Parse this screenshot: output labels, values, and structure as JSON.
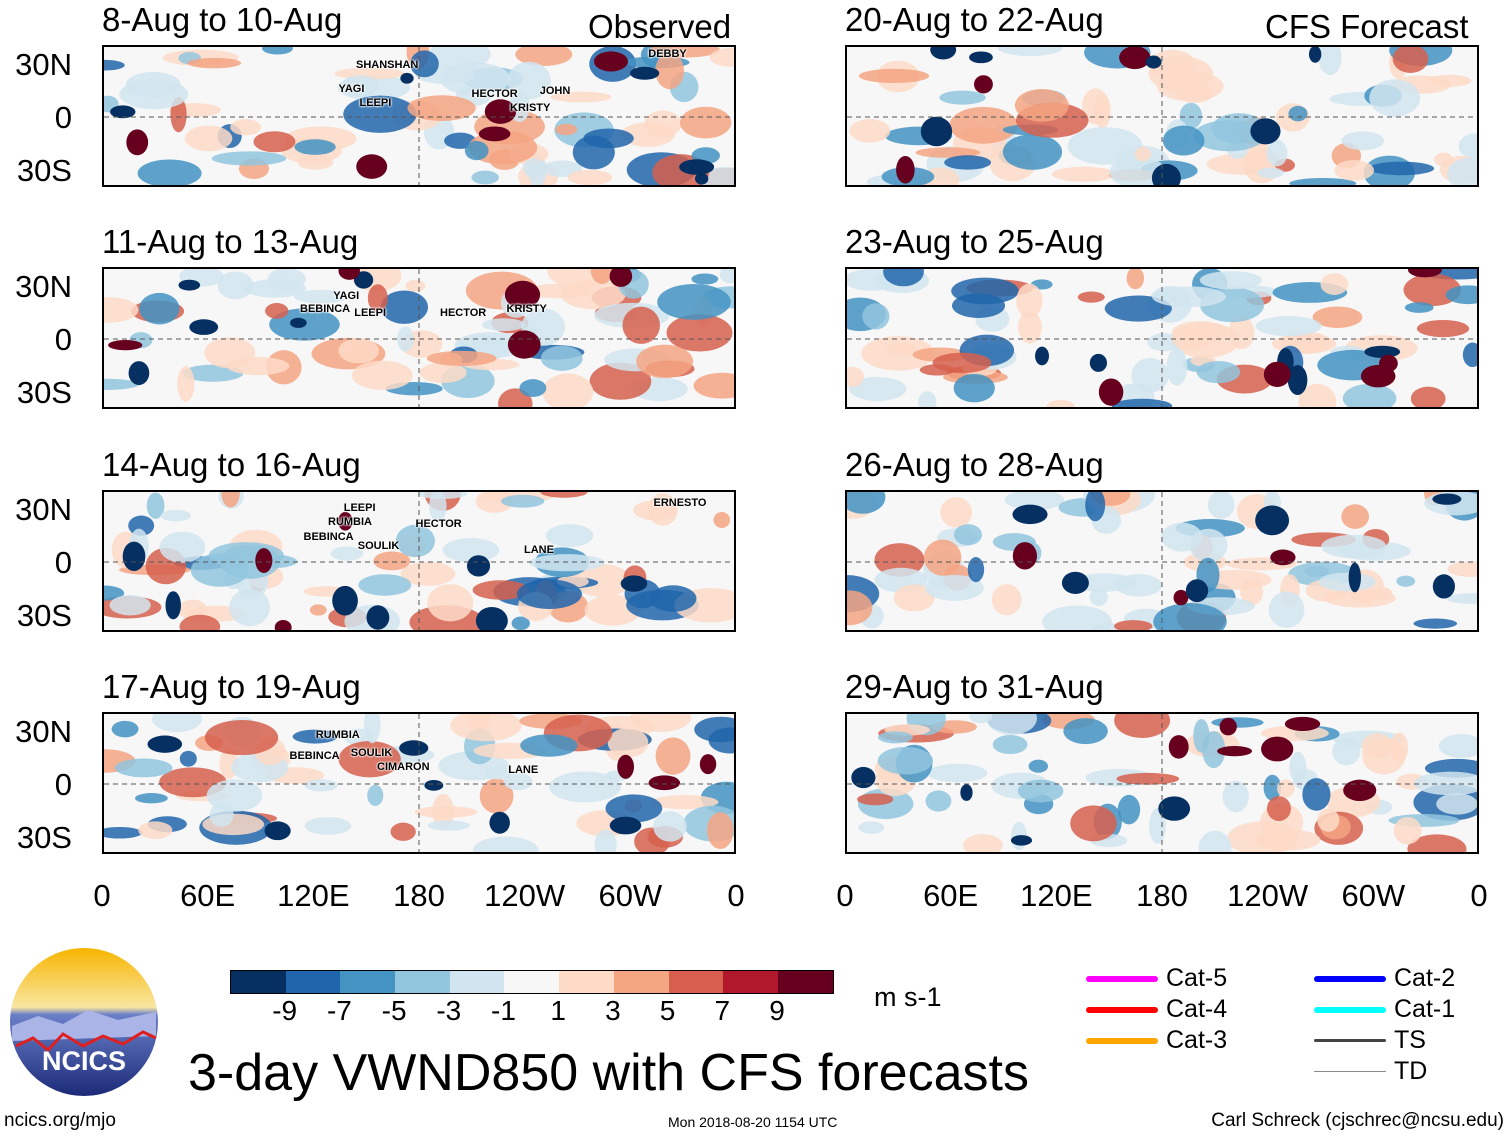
{
  "headers": {
    "observed": "Observed",
    "forecast": "CFS Forecast"
  },
  "lat_labels": [
    "30N",
    "0",
    "30S"
  ],
  "lon_labels": [
    "0",
    "60E",
    "120E",
    "180",
    "120W",
    "60W",
    "0"
  ],
  "panels": [
    {
      "title": "8-Aug to 10-Aug",
      "storms": [
        {
          "name": "SHANSHAN",
          "lon": 144,
          "lat": 30
        },
        {
          "name": "YAGI",
          "lon": 134,
          "lat": 16
        },
        {
          "name": "LEEPI",
          "lon": 146,
          "lat": 16
        },
        {
          "name": "HECTOR",
          "lon": 210,
          "lat": 13
        },
        {
          "name": "KRISTY",
          "lon": 232,
          "lat": 11
        },
        {
          "name": "JOHN",
          "lon": 249,
          "lat": 15
        },
        {
          "name": "DEBBY",
          "lon": 311,
          "lat": 36
        }
      ]
    },
    {
      "title": "11-Aug to 13-Aug",
      "storms": [
        {
          "name": "BEBINCA",
          "lon": 112,
          "lat": 17
        },
        {
          "name": "YAGI",
          "lon": 131,
          "lat": 21
        },
        {
          "name": "LEEPI",
          "lon": 143,
          "lat": 15
        },
        {
          "name": "HECTOR",
          "lon": 192,
          "lat": 15
        },
        {
          "name": "KRISTY",
          "lon": 230,
          "lat": 17
        }
      ]
    },
    {
      "title": "14-Aug to 16-Aug",
      "storms": [
        {
          "name": "RUMBIA",
          "lon": 128,
          "lat": 23
        },
        {
          "name": "LEEPI",
          "lon": 137,
          "lat": 25
        },
        {
          "name": "BEBINCA",
          "lon": 114,
          "lat": 18
        },
        {
          "name": "SOULIK",
          "lon": 145,
          "lat": 9
        },
        {
          "name": "HECTOR",
          "lon": 178,
          "lat": 22
        },
        {
          "name": "LANE",
          "lon": 240,
          "lat": 7
        },
        {
          "name": "ERNESTO",
          "lon": 314,
          "lat": 34
        }
      ]
    },
    {
      "title": "17-Aug to 19-Aug",
      "storms": [
        {
          "name": "RUMBIA",
          "lon": 121,
          "lat": 28
        },
        {
          "name": "BEBINCA",
          "lon": 106,
          "lat": 16
        },
        {
          "name": "SOULIK",
          "lon": 141,
          "lat": 18
        },
        {
          "name": "CIMARON",
          "lon": 156,
          "lat": 10
        },
        {
          "name": "LANE",
          "lon": 231,
          "lat": 8
        }
      ]
    },
    {
      "title": "20-Aug to 22-Aug",
      "storms": []
    },
    {
      "title": "23-Aug to 25-Aug",
      "storms": []
    },
    {
      "title": "26-Aug to 28-Aug",
      "storms": []
    },
    {
      "title": "29-Aug to 31-Aug",
      "storms": []
    }
  ],
  "colorbar": {
    "colors": [
      "#053061",
      "#2166ac",
      "#4393c3",
      "#92c5de",
      "#d1e5f0",
      "#f7f7f7",
      "#fddbc7",
      "#f4a582",
      "#d6604d",
      "#b2182b",
      "#67001f"
    ],
    "ticks": [
      "-9",
      "-7",
      "-5",
      "-3",
      "-1",
      "1",
      "3",
      "5",
      "7",
      "9"
    ],
    "units": "m s-1"
  },
  "legend": [
    {
      "label": "Cat-5",
      "color": "#ff00ff"
    },
    {
      "label": "Cat-4",
      "color": "#ff0000"
    },
    {
      "label": "Cat-3",
      "color": "#ffa500"
    },
    {
      "label": "Cat-2",
      "color": "#0000ff"
    },
    {
      "label": "Cat-1",
      "color": "#00ffff"
    },
    {
      "label": "TS",
      "color": "#444444"
    },
    {
      "label": "TD",
      "color": "#888888"
    }
  ],
  "title": "3-day VWND850 with CFS forecasts",
  "logo_text": "NCICS",
  "footer": {
    "url": "ncics.org/mjo",
    "timestamp": "Mon 2018-08-20 1154 UTC",
    "author": "Carl Schreck (cjschrec@ncsu.edu)"
  }
}
